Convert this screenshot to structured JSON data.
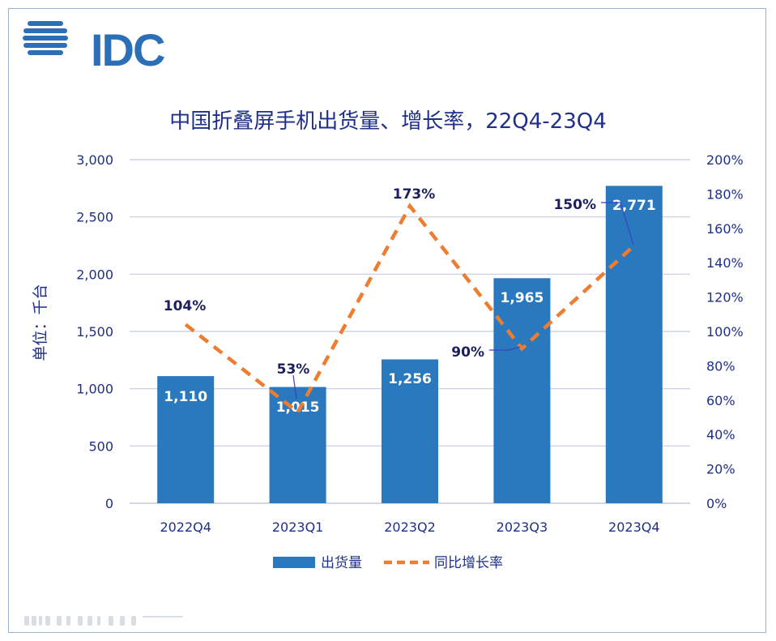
{
  "logo": {
    "text": "IDC",
    "brand_color": "#2c6fb7"
  },
  "chart_data": {
    "type": "bar",
    "title": "中国折叠屏手机出货量、增长率，22Q4-23Q4",
    "ylabel": "单位：千台",
    "categories": [
      "2022Q4",
      "2023Q1",
      "2023Q2",
      "2023Q3",
      "2023Q4"
    ],
    "ylim": [
      0,
      3000
    ],
    "y2lim": [
      0,
      200
    ],
    "y_ticks": [
      "0",
      "500",
      "1,000",
      "1,500",
      "2,000",
      "2,500",
      "3,000"
    ],
    "y2_ticks": [
      "0%",
      "20%",
      "40%",
      "60%",
      "80%",
      "100%",
      "120%",
      "140%",
      "160%",
      "180%",
      "200%"
    ],
    "series": [
      {
        "name": "出货量",
        "type": "bar",
        "axis": "left",
        "color": "#2a78bd",
        "values": [
          1110,
          1015,
          1256,
          1965,
          2771
        ],
        "labels": [
          "1,110",
          "1,015",
          "1,256",
          "1,965",
          "2,771"
        ]
      },
      {
        "name": "同比增长率",
        "type": "line",
        "axis": "right",
        "style": "dashed",
        "color": "#ee7d31",
        "values": [
          104,
          53,
          173,
          90,
          150
        ],
        "labels": [
          "104%",
          "53%",
          "173%",
          "90%",
          "150%"
        ]
      }
    ],
    "grid": true,
    "legend": "bottom-center"
  }
}
